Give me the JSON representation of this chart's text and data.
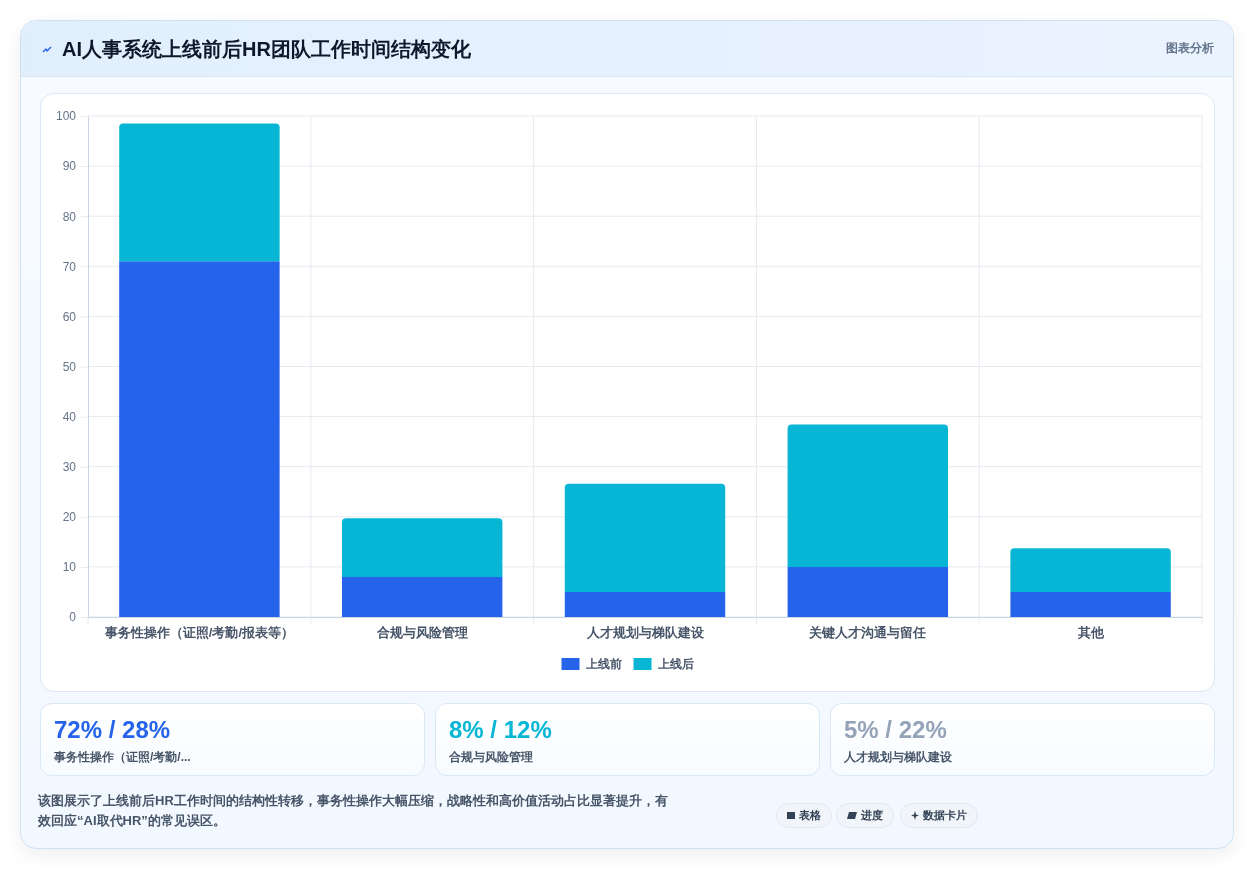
{
  "chart_data": {
    "type": "bar",
    "title": "AI人事系统上线前后HR团队工作时间结构变化",
    "categories": [
      "事务性操作（证照/考勤/报表等）",
      "合规与风险管理",
      "人才规划与梯队建设",
      "关键人才沟通与留任",
      "其他"
    ],
    "series": [
      {
        "name": "上线前",
        "color": "#2563eb",
        "values": [
          71,
          8,
          5,
          10,
          5
        ]
      },
      {
        "name": "上线后",
        "color": "#06b6d4",
        "values": [
          27.5,
          11.7,
          21.6,
          28.4,
          8.7
        ]
      }
    ],
    "stacked": true,
    "ylim": [
      0,
      100
    ],
    "yticks": [
      0,
      10,
      20,
      30,
      40,
      50,
      60,
      70,
      80,
      90,
      100
    ],
    "grid": true,
    "legend": "bottom",
    "annotations": [
      "图表分析",
      "72% / 28%",
      "事务性操作（证照/考勤/...",
      "8% / 12%",
      "合规与风险管理",
      "5% / 22%",
      "人才规划与梯队建设",
      "该图展示了上线前后HR工作时间的结构性转移，事务性操作大幅压缩，战略性和高价值活动占比显著提升，有效回应“AI取代HR”的常见误区。",
      "表格",
      "进度",
      "数据卡片"
    ]
  }
}
